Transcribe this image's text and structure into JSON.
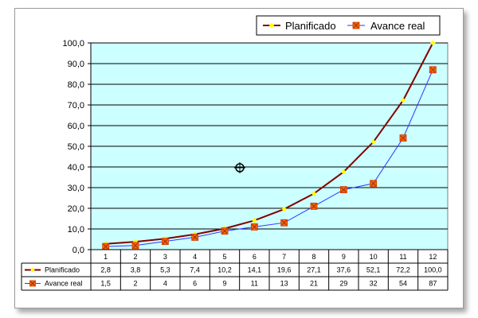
{
  "chart_data": {
    "type": "line",
    "x": [
      "1",
      "2",
      "3",
      "4",
      "5",
      "6",
      "7",
      "8",
      "9",
      "10",
      "11",
      "12"
    ],
    "ylim": [
      0,
      100
    ],
    "yticks": [
      "0,0",
      "10,0",
      "20,0",
      "30,0",
      "40,0",
      "50,0",
      "60,0",
      "70,0",
      "80,0",
      "90,0",
      "100,0"
    ],
    "grid": true,
    "legend": "top-right",
    "plot_background": "#ccffff",
    "series": [
      {
        "name": "Planificado",
        "values": [
          2.8,
          3.8,
          5.3,
          7.4,
          10.2,
          14.1,
          19.6,
          27.1,
          37.6,
          52.1,
          72.2,
          100.0
        ],
        "labels": [
          "2,8",
          "3,8",
          "5,3",
          "7,4",
          "10,2",
          "14,1",
          "19,6",
          "27,1",
          "37,6",
          "52,1",
          "72,2",
          "100,0"
        ],
        "line_color": "#800000",
        "marker_color": "#ffff00",
        "marker": "diamond"
      },
      {
        "name": "Avance real",
        "values": [
          1.5,
          2,
          4,
          6,
          9,
          11,
          13,
          21,
          29,
          32,
          54,
          87
        ],
        "labels": [
          "1,5",
          "2",
          "4",
          "6",
          "9",
          "11",
          "13",
          "21",
          "29",
          "32",
          "54",
          "87"
        ],
        "line_color": "#3333ff",
        "marker_color": "#ff6600",
        "marker": "x-square"
      }
    ]
  }
}
